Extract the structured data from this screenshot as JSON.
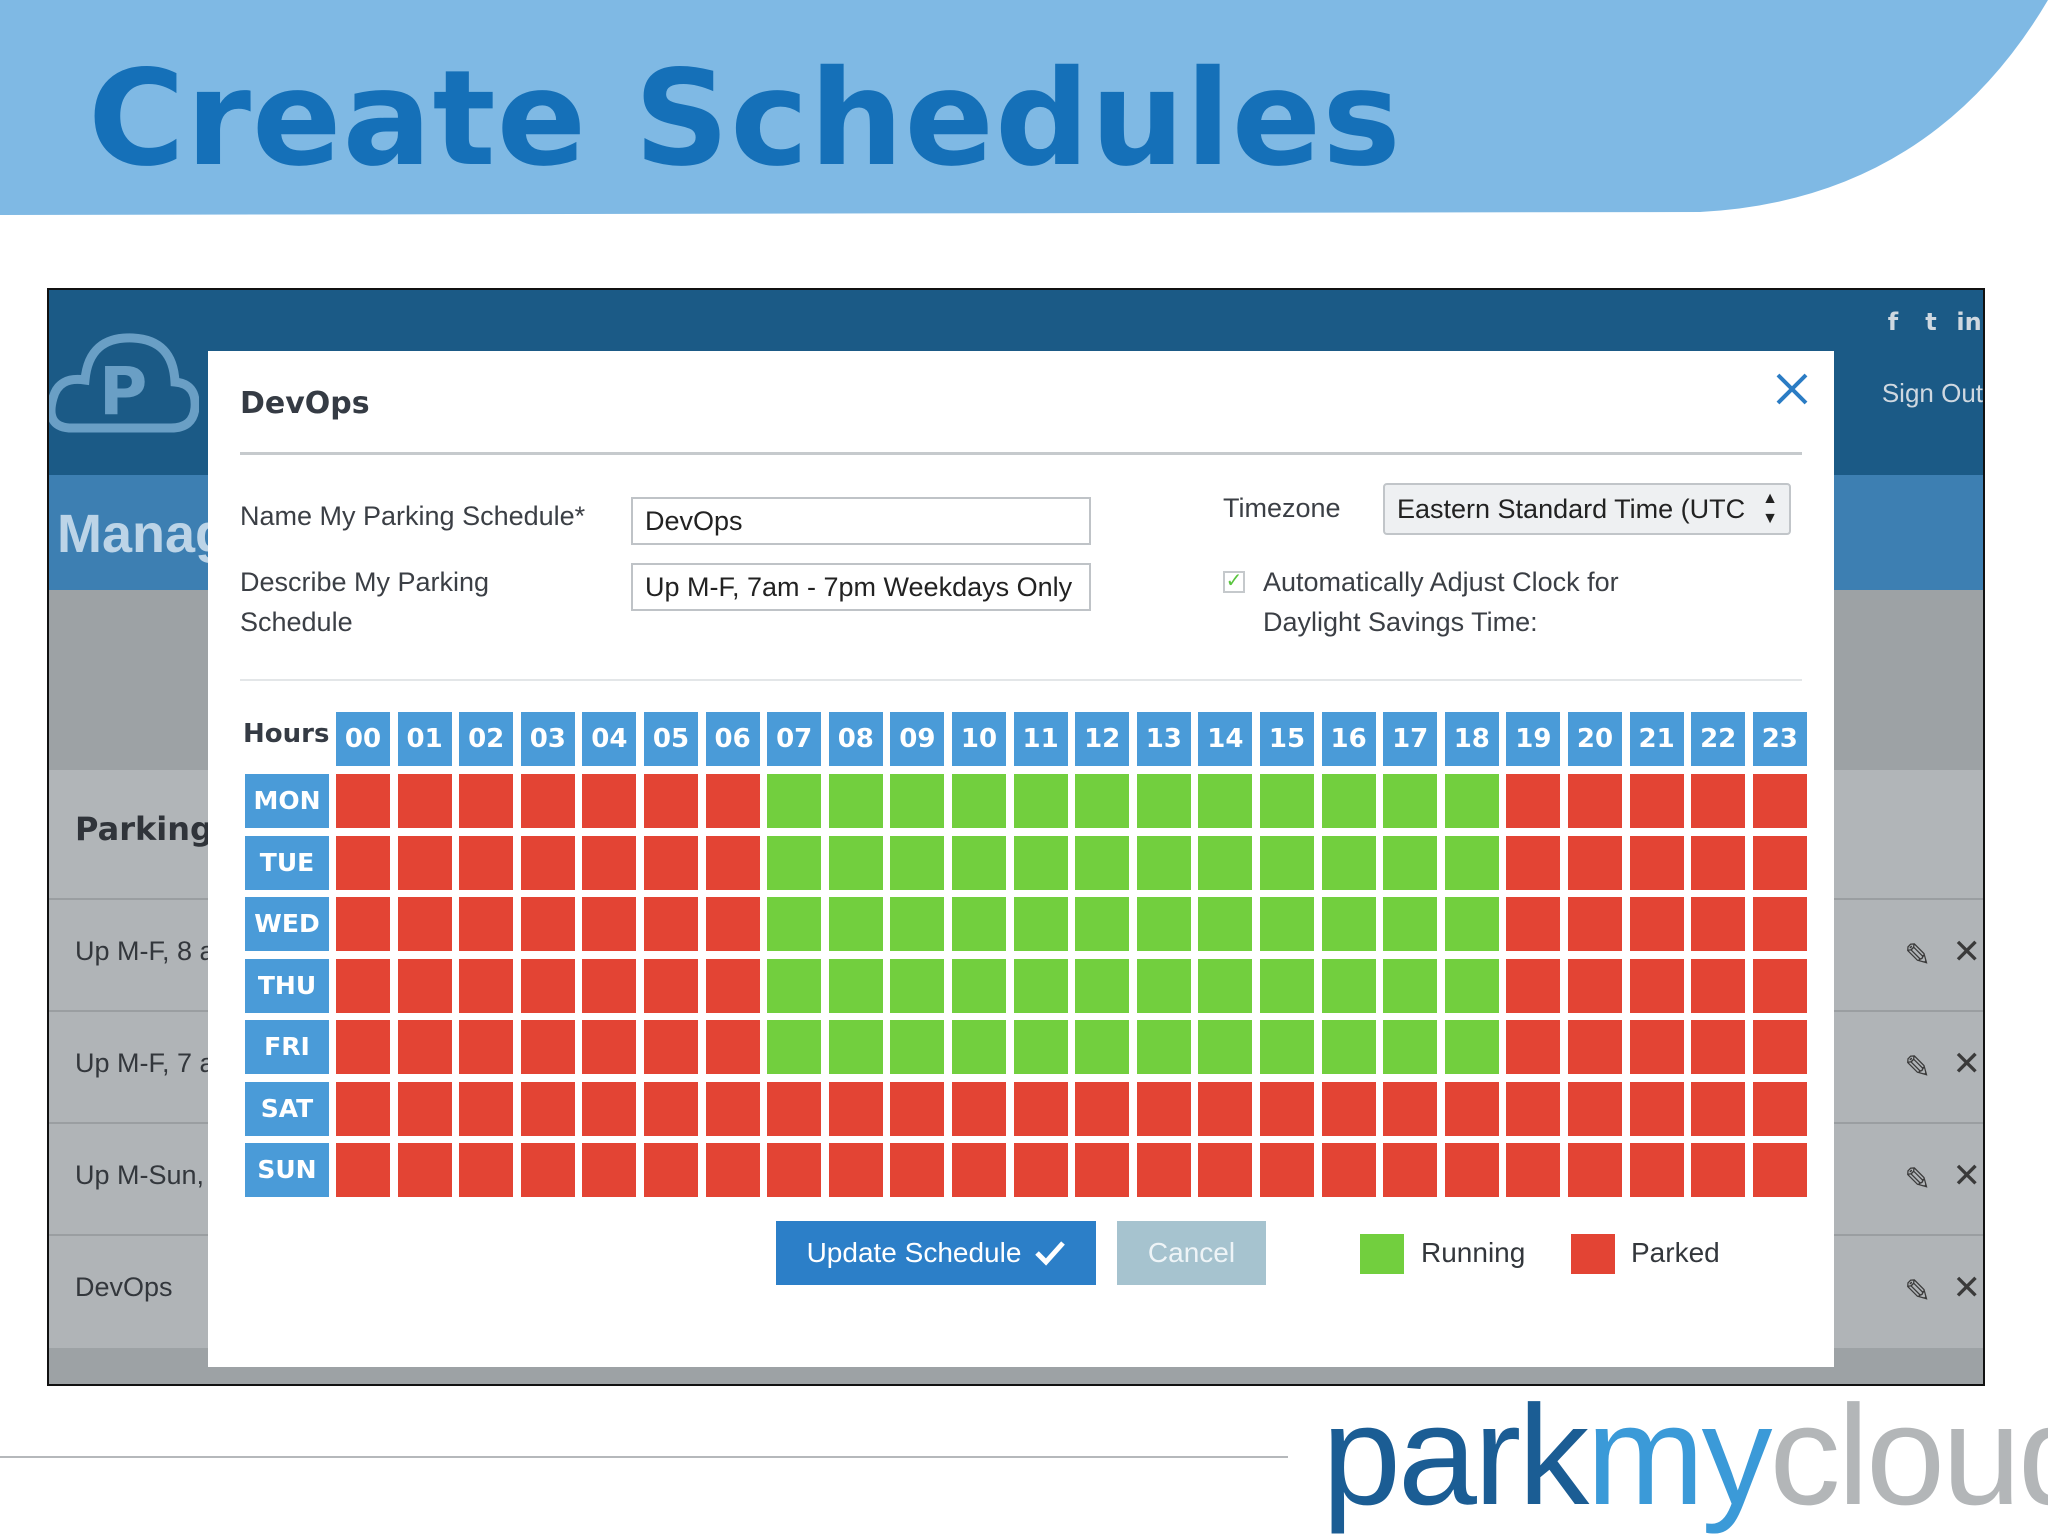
{
  "slide": {
    "title": "Create Schedules"
  },
  "background_app": {
    "social_icons": [
      "facebook-icon",
      "twitter-icon",
      "linkedin-icon"
    ],
    "sign_out_label": "Sign Out",
    "page_title": "Manag",
    "table_header": "Parking Sch",
    "rows": [
      {
        "label": "Up M-F, 8 a"
      },
      {
        "label": "Up M-F, 7 a"
      },
      {
        "label": "Up M-Sun,"
      },
      {
        "label": "DevOps"
      }
    ]
  },
  "modal": {
    "title": "DevOps",
    "name_label": "Name My Parking Schedule*",
    "name_value": "DevOps",
    "describe_label_line1": "Describe My Parking",
    "describe_label_line2": "Schedule",
    "describe_value": "Up M-F, 7am - 7pm Weekdays Only",
    "timezone_label": "Timezone",
    "timezone_value": "Eastern Standard Time (UTC",
    "dst_checked": true,
    "dst_label_line1": "Automatically Adjust Clock for",
    "dst_label_line2": "Daylight Savings Time:",
    "hours_label": "Hours ›",
    "hours": [
      "00",
      "01",
      "02",
      "03",
      "04",
      "05",
      "06",
      "07",
      "08",
      "09",
      "10",
      "11",
      "12",
      "13",
      "14",
      "15",
      "16",
      "17",
      "18",
      "19",
      "20",
      "21",
      "22",
      "23"
    ],
    "days": [
      "MON",
      "TUE",
      "WED",
      "THU",
      "FRI",
      "SAT",
      "SUN"
    ],
    "schedule": [
      "RRRRRRRGGGGGGGGGGGGRRRRR",
      "RRRRRRRGGGGGGGGGGGGRRRRR",
      "RRRRRRRGGGGGGGGGGGGRRRRR",
      "RRRRRRRGGGGGGGGGGGGRRRRR",
      "RRRRRRRGGGGGGGGGGGGRRRRR",
      "RRRRRRRRRRRRRRRRRRRRRRRR",
      "RRRRRRRRRRRRRRRRRRRRRRRR"
    ],
    "update_label": "Update Schedule",
    "cancel_label": "Cancel",
    "legend": [
      {
        "label": "Running",
        "color": "#72cf3e"
      },
      {
        "label": "Parked",
        "color": "#e34434"
      }
    ]
  },
  "colors": {
    "running": "#72cf3e",
    "parked": "#e34434",
    "header_cell": "#4a9bd8"
  },
  "brand": {
    "part1": "park",
    "part2": "my",
    "part3": "cloud"
  }
}
